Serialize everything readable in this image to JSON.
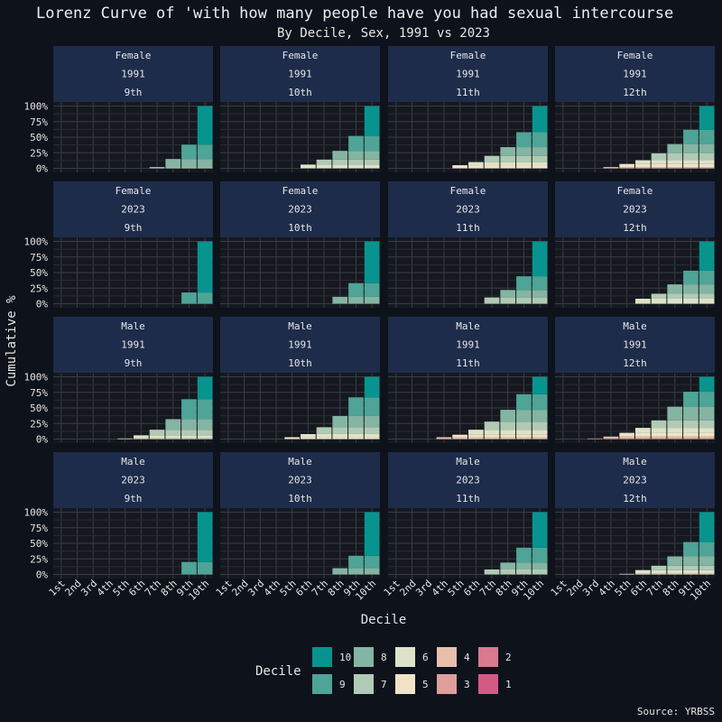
{
  "chart_data": {
    "type": "bar",
    "stacked": true,
    "title": "Lorenz Curve of 'with how many people have you had sexual intercourse",
    "subtitle": "By Decile, Sex, 1991 vs 2023",
    "xlabel": "Decile",
    "ylabel": "Cumulative %",
    "caption": "Source: YRBSS",
    "categories": [
      "1st",
      "2nd",
      "3rd",
      "4th",
      "5th",
      "6th",
      "7th",
      "8th",
      "9th",
      "10th"
    ],
    "y_ticks": [
      "0%",
      "25%",
      "50%",
      "75%",
      "100%"
    ],
    "ylim": [
      0,
      100
    ],
    "grid": true,
    "legend_title": "Decile",
    "legend_position": "bottom",
    "decile_colors": {
      "1": "#d45a86",
      "2": "#d97a8f",
      "3": "#df9e9b",
      "4": "#e8bfad",
      "5": "#f2e2c8",
      "6": "#dde3c8",
      "7": "#b1cab4",
      "8": "#84b4a2",
      "9": "#4ea497",
      "10": "#07948e"
    },
    "legend": [
      {
        "label": "10",
        "decile": 10
      },
      {
        "label": "9",
        "decile": 9
      },
      {
        "label": "8",
        "decile": 8
      },
      {
        "label": "7",
        "decile": 7
      },
      {
        "label": "6",
        "decile": 6
      },
      {
        "label": "5",
        "decile": 5
      },
      {
        "label": "4",
        "decile": 4
      },
      {
        "label": "3",
        "decile": 3
      },
      {
        "label": "2",
        "decile": 2
      },
      {
        "label": "1",
        "decile": 1
      }
    ],
    "panels": [
      {
        "sex": "Female",
        "year": "1991",
        "grade": "9th",
        "values": [
          0,
          0,
          0,
          0,
          0,
          0,
          2,
          15,
          38,
          100
        ]
      },
      {
        "sex": "Female",
        "year": "1991",
        "grade": "10th",
        "values": [
          0,
          0,
          0,
          0,
          0,
          6,
          14,
          28,
          52,
          100
        ]
      },
      {
        "sex": "Female",
        "year": "1991",
        "grade": "11th",
        "values": [
          0,
          0,
          0,
          0,
          5,
          10,
          20,
          34,
          58,
          100
        ]
      },
      {
        "sex": "Female",
        "year": "1991",
        "grade": "12th",
        "values": [
          0,
          0,
          0,
          2,
          7,
          13,
          24,
          39,
          62,
          100
        ]
      },
      {
        "sex": "Female",
        "year": "2023",
        "grade": "9th",
        "values": [
          0,
          0,
          0,
          0,
          0,
          0,
          0,
          0,
          18,
          100
        ]
      },
      {
        "sex": "Female",
        "year": "2023",
        "grade": "10th",
        "values": [
          0,
          0,
          0,
          0,
          0,
          0,
          0,
          11,
          33,
          100
        ]
      },
      {
        "sex": "Female",
        "year": "2023",
        "grade": "11th",
        "values": [
          0,
          0,
          0,
          0,
          0,
          0,
          10,
          22,
          44,
          100
        ]
      },
      {
        "sex": "Female",
        "year": "2023",
        "grade": "12th",
        "values": [
          0,
          0,
          0,
          0,
          0,
          8,
          16,
          31,
          53,
          100
        ]
      },
      {
        "sex": "Male",
        "year": "1991",
        "grade": "9th",
        "values": [
          0,
          0,
          0,
          0,
          1,
          6,
          15,
          32,
          64,
          100
        ]
      },
      {
        "sex": "Male",
        "year": "1991",
        "grade": "10th",
        "values": [
          0,
          0,
          0,
          0,
          3,
          8,
          19,
          37,
          67,
          100
        ]
      },
      {
        "sex": "Male",
        "year": "1991",
        "grade": "11th",
        "values": [
          0,
          0,
          0,
          3,
          7,
          15,
          28,
          47,
          72,
          100
        ]
      },
      {
        "sex": "Male",
        "year": "1991",
        "grade": "12th",
        "values": [
          0,
          0,
          1,
          4,
          10,
          18,
          30,
          52,
          76,
          100
        ]
      },
      {
        "sex": "Male",
        "year": "2023",
        "grade": "9th",
        "values": [
          0,
          0,
          0,
          0,
          0,
          0,
          0,
          0,
          20,
          100
        ]
      },
      {
        "sex": "Male",
        "year": "2023",
        "grade": "10th",
        "values": [
          0,
          0,
          0,
          0,
          0,
          0,
          0,
          10,
          30,
          100
        ]
      },
      {
        "sex": "Male",
        "year": "2023",
        "grade": "11th",
        "values": [
          0,
          0,
          0,
          0,
          0,
          0,
          8,
          19,
          43,
          100
        ]
      },
      {
        "sex": "Male",
        "year": "2023",
        "grade": "12th",
        "values": [
          0,
          0,
          0,
          0,
          1,
          7,
          14,
          29,
          52,
          100
        ]
      }
    ]
  }
}
